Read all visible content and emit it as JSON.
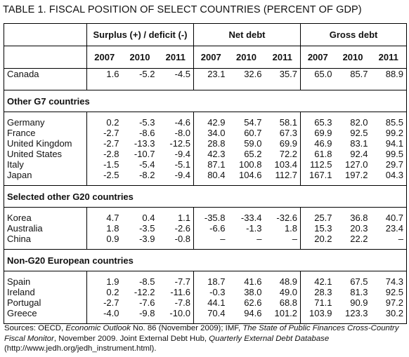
{
  "title": "TABLE 1. FISCAL POSITION OF SELECT COUNTRIES (PERCENT OF GDP)",
  "groups": {
    "surplus": "Surplus (+) / deficit (-)",
    "net_debt": "Net debt",
    "gross_debt": "Gross debt"
  },
  "years": [
    "2007",
    "2010",
    "2011",
    "2007",
    "2010",
    "2011",
    "2007",
    "2010",
    "2011"
  ],
  "canada": {
    "name": "Canada",
    "values": [
      "1.6",
      "-5.2",
      "-4.5",
      "23.1",
      "32.6",
      "35.7",
      "65.0",
      "85.7",
      "88.9"
    ]
  },
  "sections": [
    {
      "heading": "Other G7 countries",
      "rows": [
        {
          "name": "Germany",
          "values": [
            "0.2",
            "-5.3",
            "-4.6",
            "42.9",
            "54.7",
            "58.1",
            "65.3",
            "82.0",
            "85.5"
          ]
        },
        {
          "name": "France",
          "values": [
            "-2.7",
            "-8.6",
            "-8.0",
            "34.0",
            "60.7",
            "67.3",
            "69.9",
            "92.5",
            "99.2"
          ]
        },
        {
          "name": "United Kingdom",
          "values": [
            "-2.7",
            "-13.3",
            "-12.5",
            "28.8",
            "59.0",
            "69.9",
            "46.9",
            "83.1",
            "94.1"
          ]
        },
        {
          "name": "United States",
          "values": [
            "-2.8",
            "-10.7",
            "-9.4",
            "42.3",
            "65.2",
            "72.2",
            "61.8",
            "92.4",
            "99.5"
          ]
        },
        {
          "name": "Italy",
          "values": [
            "-1.5",
            "-5.4",
            "-5.1",
            "87.1",
            "100.8",
            "103.4",
            "112.5",
            "127.0",
            "29.7"
          ]
        },
        {
          "name": "Japan",
          "values": [
            "-2.5",
            "-8.2",
            "-9.4",
            "80.4",
            "104.6",
            "112.7",
            "167.1",
            "197.2",
            "04.3"
          ]
        }
      ]
    },
    {
      "heading": "Selected other G20 countries",
      "rows": [
        {
          "name": "Korea",
          "values": [
            "4.7",
            "0.4",
            "1.1",
            "-35.8",
            "-33.4",
            "-32.6",
            "25.7",
            "36.8",
            "40.7"
          ]
        },
        {
          "name": "Australia",
          "values": [
            "1.8",
            "-3.5",
            "-2.6",
            "-6.6",
            "-1.3",
            "1.8",
            "15.3",
            "20.3",
            "23.4"
          ]
        },
        {
          "name": "China",
          "values": [
            "0.9",
            "-3.9",
            "-0.8",
            "–",
            "–",
            "–",
            "20.2",
            "22.2",
            "–"
          ]
        }
      ]
    },
    {
      "heading": "Non-G20 European countries",
      "rows": [
        {
          "name": "Spain",
          "values": [
            "1.9",
            "-8.5",
            "-7.7",
            "18.7",
            "41.6",
            "48.9",
            "42.1",
            "67.5",
            "74.3"
          ]
        },
        {
          "name": "Ireland",
          "values": [
            "0.2",
            "-12.2",
            "-11.6",
            "-0.3",
            "38.0",
            "49.0",
            "28.3",
            "81.3",
            "92.5"
          ]
        },
        {
          "name": "Portugal",
          "values": [
            "-2.7",
            "-7.6",
            "-7.8",
            "44.1",
            "62.6",
            "68.8",
            "71.1",
            "90.9",
            "97.2"
          ]
        },
        {
          "name": "Greece",
          "values": [
            "-4.0",
            "-9.8",
            "-10.0",
            "70.4",
            "94.6",
            "101.2",
            "103.9",
            "123.3",
            "30.2"
          ]
        }
      ]
    }
  ],
  "sources": {
    "part1": "Sources: OECD, ",
    "part2": "Economic Outlook",
    "part3": " No. 86 (November 2009); IMF, ",
    "part4": "The State of Public Finances Cross-Country Fiscal Monitor",
    "part5": ", November 2009. Joint External Debt Hub, ",
    "part6": "Quarterly External Debt Database",
    "part7": " (http://www.jedh.org/jedh_instrument.html)."
  }
}
